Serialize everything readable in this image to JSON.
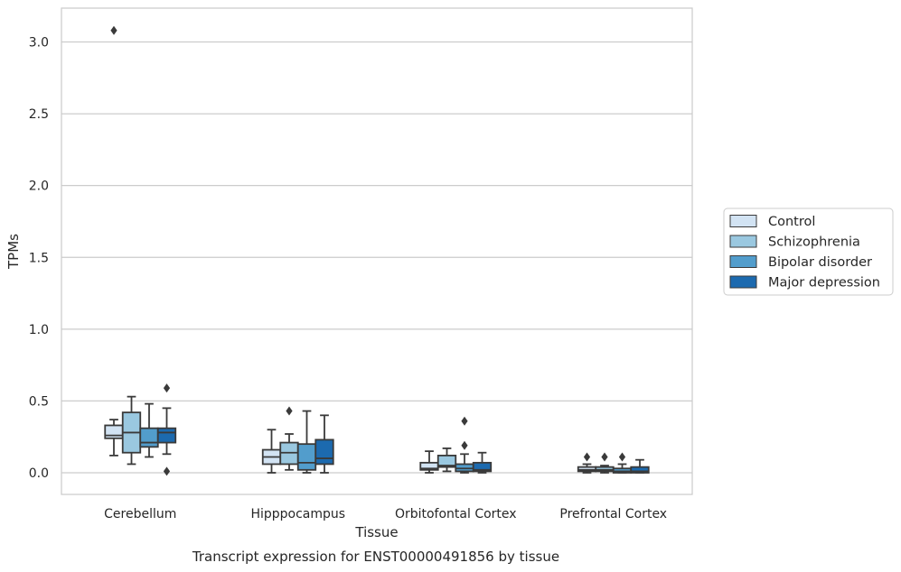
{
  "chart_data": {
    "type": "boxplot",
    "title": "",
    "xlabel": "Tissue",
    "ylabel": "TPMs",
    "caption": "Transcript expression for ENST00000491856 by tissue",
    "categories": [
      "Cerebellum",
      "Hipppocampus",
      "Orbitofontal Cortex",
      "Prefrontal Cortex"
    ],
    "yticks": [
      "0.0",
      "0.5",
      "1.0",
      "1.5",
      "2.0",
      "2.5",
      "3.0"
    ],
    "ylim": [
      -0.15,
      3.24
    ],
    "grid": "horizontal",
    "legend_position": "right",
    "series": [
      {
        "name": "Control",
        "color": "#d2e3f3",
        "boxes": [
          {
            "whislo": 0.12,
            "q1": 0.24,
            "med": 0.26,
            "q3": 0.33,
            "whishi": 0.37,
            "fliers": [
              3.08
            ]
          },
          {
            "whislo": 0.0,
            "q1": 0.06,
            "med": 0.11,
            "q3": 0.16,
            "whishi": 0.3,
            "fliers": []
          },
          {
            "whislo": 0.0,
            "q1": 0.02,
            "med": 0.03,
            "q3": 0.07,
            "whishi": 0.15,
            "fliers": []
          },
          {
            "whislo": 0.0,
            "q1": 0.01,
            "med": 0.02,
            "q3": 0.04,
            "whishi": 0.06,
            "fliers": [
              0.11
            ]
          }
        ]
      },
      {
        "name": "Schizophrenia",
        "color": "#9ac8e0",
        "boxes": [
          {
            "whislo": 0.06,
            "q1": 0.14,
            "med": 0.28,
            "q3": 0.42,
            "whishi": 0.53,
            "fliers": []
          },
          {
            "whislo": 0.02,
            "q1": 0.06,
            "med": 0.14,
            "q3": 0.21,
            "whishi": 0.27,
            "fliers": [
              0.43
            ]
          },
          {
            "whislo": 0.01,
            "q1": 0.04,
            "med": 0.05,
            "q3": 0.12,
            "whishi": 0.17,
            "fliers": []
          },
          {
            "whislo": 0.0,
            "q1": 0.01,
            "med": 0.02,
            "q3": 0.04,
            "whishi": 0.05,
            "fliers": [
              0.11
            ]
          }
        ]
      },
      {
        "name": "Bipolar disorder",
        "color": "#529dcc",
        "boxes": [
          {
            "whislo": 0.11,
            "q1": 0.18,
            "med": 0.21,
            "q3": 0.31,
            "whishi": 0.48,
            "fliers": []
          },
          {
            "whislo": 0.0,
            "q1": 0.02,
            "med": 0.07,
            "q3": 0.2,
            "whishi": 0.43,
            "fliers": []
          },
          {
            "whislo": 0.0,
            "q1": 0.01,
            "med": 0.03,
            "q3": 0.06,
            "whishi": 0.13,
            "fliers": [
              0.19,
              0.36
            ]
          },
          {
            "whislo": 0.0,
            "q1": 0.0,
            "med": 0.01,
            "q3": 0.03,
            "whishi": 0.06,
            "fliers": [
              0.11
            ]
          }
        ]
      },
      {
        "name": "Major depression",
        "color": "#1c6aaf",
        "boxes": [
          {
            "whislo": 0.13,
            "q1": 0.21,
            "med": 0.28,
            "q3": 0.31,
            "whishi": 0.45,
            "fliers": [
              0.59,
              0.01
            ]
          },
          {
            "whislo": 0.0,
            "q1": 0.06,
            "med": 0.1,
            "q3": 0.23,
            "whishi": 0.4,
            "fliers": []
          },
          {
            "whislo": 0.0,
            "q1": 0.01,
            "med": 0.02,
            "q3": 0.07,
            "whishi": 0.14,
            "fliers": []
          },
          {
            "whislo": 0.0,
            "q1": 0.0,
            "med": 0.01,
            "q3": 0.04,
            "whishi": 0.09,
            "fliers": []
          }
        ]
      }
    ]
  }
}
